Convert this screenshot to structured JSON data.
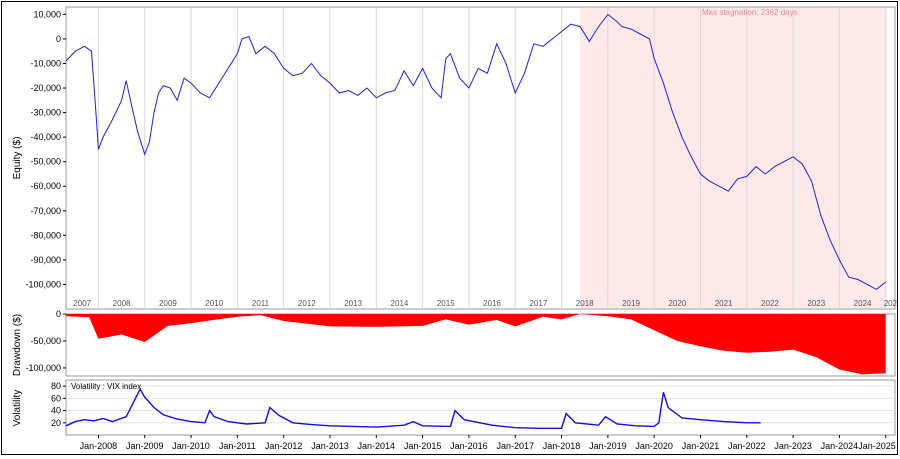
{
  "chart_data": [
    {
      "type": "line",
      "ylabel": "Equity ($)",
      "ylim": [
        -110000,
        13000
      ],
      "yticks": [
        "10,000",
        "0",
        "-10,000",
        "-20,000",
        "-30,000",
        "-40,000",
        "-50,000",
        "-60,000",
        "-70,000",
        "-80,000",
        "-90,000",
        "-100,000"
      ],
      "year_labels": [
        "2007",
        "2008",
        "2009",
        "2010",
        "2011",
        "2012",
        "2013",
        "2014",
        "2015",
        "2016",
        "2017",
        "2018",
        "2019",
        "2020",
        "2021",
        "2022",
        "2023",
        "2024",
        "202"
      ],
      "annotation": "Max stagnation: 2362 days",
      "stagnation_start": 2018.4,
      "stagnation_end": 2025.0,
      "line_color": "#2222cc",
      "stagnation_color": "#fde9e9",
      "series": [
        {
          "x": [
            2007.3,
            2007.5,
            2007.7,
            2007.85,
            2007.95,
            2008.0,
            2008.1,
            2008.3,
            2008.5,
            2008.6,
            2008.75,
            2008.85,
            2009.0,
            2009.1,
            2009.2,
            2009.3,
            2009.4,
            2009.55,
            2009.7,
            2009.85,
            2010.0,
            2010.2,
            2010.4,
            2010.6,
            2010.8,
            2011.0,
            2011.1,
            2011.25,
            2011.4,
            2011.6,
            2011.8,
            2012.0,
            2012.2,
            2012.4,
            2012.6,
            2012.8,
            2013.0,
            2013.2,
            2013.4,
            2013.6,
            2013.8,
            2014.0,
            2014.2,
            2014.4,
            2014.6,
            2014.8,
            2015.0,
            2015.2,
            2015.4,
            2015.5,
            2015.6,
            2015.8,
            2016.0,
            2016.2,
            2016.4,
            2016.6,
            2016.8,
            2017.0,
            2017.2,
            2017.4,
            2017.6,
            2017.8,
            2018.0,
            2018.2,
            2018.4,
            2018.6,
            2018.8,
            2019.0,
            2019.2,
            2019.3,
            2019.5,
            2019.7,
            2019.9,
            2020.0,
            2020.2,
            2020.4,
            2020.6,
            2020.8,
            2021.0,
            2021.2,
            2021.4,
            2021.6,
            2021.8,
            2022.0,
            2022.2,
            2022.4,
            2022.6,
            2022.8,
            2023.0,
            2023.2,
            2023.4,
            2023.6,
            2023.8,
            2024.0,
            2024.2,
            2024.4,
            2024.6,
            2024.8,
            2025.0
          ],
          "y": [
            -9000,
            -5000,
            -3000,
            -5000,
            -31000,
            -45000,
            -40000,
            -33000,
            -25000,
            -17000,
            -30000,
            -38000,
            -47000,
            -42000,
            -30000,
            -22000,
            -19000,
            -20000,
            -25000,
            -16000,
            -18000,
            -22000,
            -24000,
            -18000,
            -12000,
            -6000,
            0,
            1000,
            -6000,
            -3000,
            -6000,
            -12000,
            -15000,
            -14000,
            -10000,
            -15000,
            -18000,
            -22000,
            -21000,
            -23000,
            -20000,
            -24000,
            -22000,
            -21000,
            -13000,
            -19000,
            -12000,
            -20000,
            -24000,
            -8000,
            -6000,
            -16000,
            -20000,
            -12000,
            -14000,
            -2000,
            -10000,
            -22000,
            -14000,
            -2000,
            -3000,
            0,
            3000,
            6000,
            5000,
            -1000,
            5000,
            10000,
            7000,
            5000,
            4000,
            2000,
            0,
            -8000,
            -18000,
            -30000,
            -40000,
            -48000,
            -55000,
            -58000,
            -60000,
            -62000,
            -57000,
            -56000,
            -52000,
            -55000,
            -52000,
            -50000,
            -48000,
            -51000,
            -58000,
            -72000,
            -82000,
            -90000,
            -97000,
            -98000,
            -100000,
            -102000,
            -99000
          ]
        }
      ]
    },
    {
      "type": "area",
      "ylabel": "Drawdown ($)",
      "ylim": [
        -115000,
        0
      ],
      "yticks": [
        "0",
        "-50,000",
        "-100,000"
      ],
      "color": "#ff0000",
      "series": [
        {
          "x": [
            2007.3,
            2007.8,
            2008.0,
            2008.5,
            2009.0,
            2009.5,
            2010.0,
            2010.5,
            2011.0,
            2011.5,
            2012.0,
            2013.0,
            2014.0,
            2015.0,
            2015.5,
            2016.0,
            2016.6,
            2017.0,
            2017.6,
            2018.0,
            2018.4,
            2019.0,
            2019.5,
            2020.0,
            2020.5,
            2021.0,
            2021.5,
            2022.0,
            2022.5,
            2023.0,
            2023.5,
            2024.0,
            2024.5,
            2025.0
          ],
          "y": [
            -4000,
            -6000,
            -46000,
            -38000,
            -52000,
            -22000,
            -17000,
            -11000,
            -5000,
            -2000,
            -13000,
            -23000,
            -24000,
            -22000,
            -10000,
            -20000,
            -11000,
            -23000,
            -5000,
            -10000,
            0,
            -4000,
            -10000,
            -30000,
            -50000,
            -60000,
            -68000,
            -72000,
            -70000,
            -66000,
            -80000,
            -103000,
            -112000,
            -110000
          ]
        }
      ]
    },
    {
      "type": "line",
      "ylabel": "Volatility",
      "legend": "Volatility : VIX index",
      "ylim": [
        0,
        90
      ],
      "yticks": [
        "80",
        "60",
        "40",
        "20"
      ],
      "x_tick_labels": [
        "Jan-2008",
        "Jan-2009",
        "Jan-2010",
        "Jan-2011",
        "Jan-2012",
        "Jan-2013",
        "Jan-2014",
        "Jan-2015",
        "Jan-2016",
        "Jan-2017",
        "Jan-2018",
        "Jan-2019",
        "Jan-2020",
        "Jan-2021",
        "Jan-2022",
        "Jan-2023",
        "Jan-2024",
        "Jan-2025"
      ],
      "color": "#1010dd",
      "series": [
        {
          "x": [
            2007.3,
            2007.5,
            2007.7,
            2007.9,
            2008.1,
            2008.3,
            2008.6,
            2008.8,
            2008.9,
            2009.0,
            2009.2,
            2009.4,
            2009.7,
            2010.0,
            2010.3,
            2010.4,
            2010.5,
            2010.8,
            2011.2,
            2011.6,
            2011.7,
            2011.9,
            2012.2,
            2012.6,
            2013.0,
            2013.5,
            2014.0,
            2014.6,
            2014.8,
            2015.0,
            2015.6,
            2015.7,
            2015.9,
            2016.1,
            2016.5,
            2017.0,
            2017.5,
            2018.0,
            2018.1,
            2018.3,
            2018.8,
            2018.95,
            2019.2,
            2019.6,
            2020.0,
            2020.1,
            2020.2,
            2020.3,
            2020.6,
            2021.0,
            2021.5,
            2022.0,
            2022.3
          ],
          "y": [
            15,
            22,
            25,
            23,
            27,
            22,
            30,
            60,
            75,
            62,
            45,
            33,
            26,
            22,
            20,
            40,
            30,
            22,
            18,
            20,
            45,
            32,
            20,
            17,
            15,
            14,
            13,
            16,
            22,
            15,
            14,
            40,
            25,
            22,
            16,
            12,
            11,
            11,
            35,
            20,
            16,
            30,
            18,
            15,
            14,
            20,
            70,
            45,
            28,
            25,
            22,
            20,
            20
          ]
        }
      ]
    }
  ]
}
